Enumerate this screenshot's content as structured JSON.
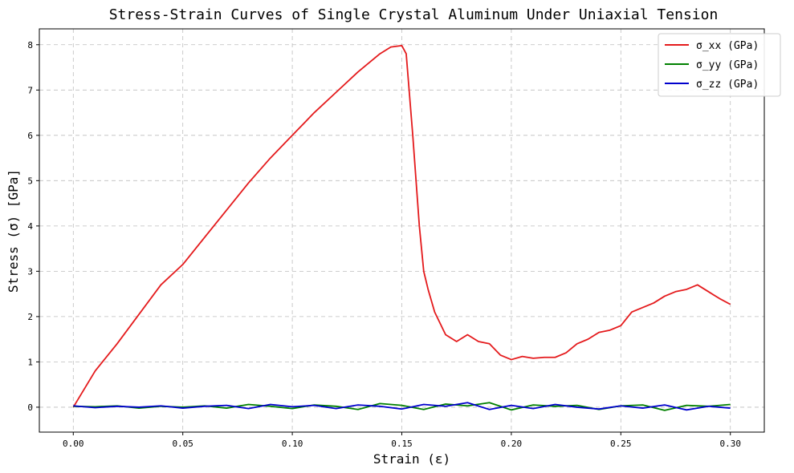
{
  "chart_data": {
    "type": "line",
    "title": "Stress-Strain Curves of Single Crystal Aluminum Under Uniaxial Tension",
    "xlabel": "Strain (ε)",
    "ylabel": "Stress (σ) [GPa]",
    "xlim": [
      -0.0155,
      0.3155
    ],
    "ylim": [
      -0.55,
      8.35
    ],
    "xticks": [
      0.0,
      0.05,
      0.1,
      0.15,
      0.2,
      0.25,
      0.3
    ],
    "xtick_labels": [
      "0.00",
      "0.05",
      "0.10",
      "0.15",
      "0.20",
      "0.25",
      "0.30"
    ],
    "yticks": [
      0,
      1,
      2,
      3,
      4,
      5,
      6,
      7,
      8
    ],
    "ytick_labels": [
      "0",
      "1",
      "2",
      "3",
      "4",
      "5",
      "6",
      "7",
      "8"
    ],
    "grid": true,
    "legend_position": "top-right",
    "series": [
      {
        "name": "σ_xx (GPa)",
        "color": "#e41a1c",
        "x": [
          0.0,
          0.005,
          0.01,
          0.02,
          0.03,
          0.04,
          0.05,
          0.06,
          0.07,
          0.08,
          0.09,
          0.1,
          0.11,
          0.12,
          0.13,
          0.14,
          0.145,
          0.15,
          0.152,
          0.155,
          0.158,
          0.16,
          0.162,
          0.165,
          0.17,
          0.175,
          0.18,
          0.185,
          0.19,
          0.195,
          0.2,
          0.205,
          0.21,
          0.215,
          0.22,
          0.225,
          0.23,
          0.235,
          0.24,
          0.245,
          0.25,
          0.255,
          0.26,
          0.265,
          0.27,
          0.275,
          0.28,
          0.285,
          0.29,
          0.295,
          0.3
        ],
        "y": [
          0.0,
          0.4,
          0.8,
          1.4,
          2.05,
          2.7,
          3.15,
          3.75,
          4.35,
          4.95,
          5.5,
          6.0,
          6.5,
          6.95,
          7.4,
          7.8,
          7.95,
          7.98,
          7.8,
          6.0,
          4.0,
          3.0,
          2.6,
          2.1,
          1.6,
          1.45,
          1.6,
          1.45,
          1.4,
          1.15,
          1.05,
          1.12,
          1.08,
          1.1,
          1.1,
          1.2,
          1.4,
          1.5,
          1.65,
          1.7,
          1.8,
          2.1,
          2.2,
          2.3,
          2.45,
          2.55,
          2.6,
          2.7,
          2.55,
          2.4,
          2.27
        ]
      },
      {
        "name": "σ_yy (GPa)",
        "color": "#008000",
        "x": [
          0.0,
          0.01,
          0.02,
          0.03,
          0.04,
          0.05,
          0.06,
          0.07,
          0.08,
          0.09,
          0.1,
          0.11,
          0.12,
          0.13,
          0.14,
          0.15,
          0.16,
          0.17,
          0.18,
          0.19,
          0.2,
          0.21,
          0.22,
          0.23,
          0.24,
          0.25,
          0.26,
          0.27,
          0.28,
          0.29,
          0.3
        ],
        "y": [
          0.02,
          0.01,
          0.03,
          -0.02,
          0.02,
          0.0,
          0.03,
          -0.02,
          0.06,
          0.02,
          -0.03,
          0.05,
          0.02,
          -0.05,
          0.08,
          0.04,
          -0.05,
          0.07,
          0.03,
          0.1,
          -0.06,
          0.05,
          0.02,
          0.04,
          -0.05,
          0.03,
          0.05,
          -0.07,
          0.04,
          0.02,
          0.06
        ]
      },
      {
        "name": "σ_zz (GPa)",
        "color": "#0000cd",
        "x": [
          0.0,
          0.01,
          0.02,
          0.03,
          0.04,
          0.05,
          0.06,
          0.07,
          0.08,
          0.09,
          0.1,
          0.11,
          0.12,
          0.13,
          0.14,
          0.15,
          0.16,
          0.17,
          0.18,
          0.19,
          0.2,
          0.21,
          0.22,
          0.23,
          0.24,
          0.25,
          0.26,
          0.27,
          0.28,
          0.29,
          0.3
        ],
        "y": [
          0.03,
          -0.01,
          0.02,
          0.0,
          0.03,
          -0.02,
          0.02,
          0.04,
          -0.03,
          0.06,
          0.01,
          0.04,
          -0.03,
          0.05,
          0.02,
          -0.04,
          0.06,
          0.02,
          0.1,
          -0.05,
          0.04,
          -0.03,
          0.06,
          0.0,
          -0.04,
          0.03,
          -0.02,
          0.05,
          -0.06,
          0.02,
          -0.02
        ]
      }
    ]
  }
}
